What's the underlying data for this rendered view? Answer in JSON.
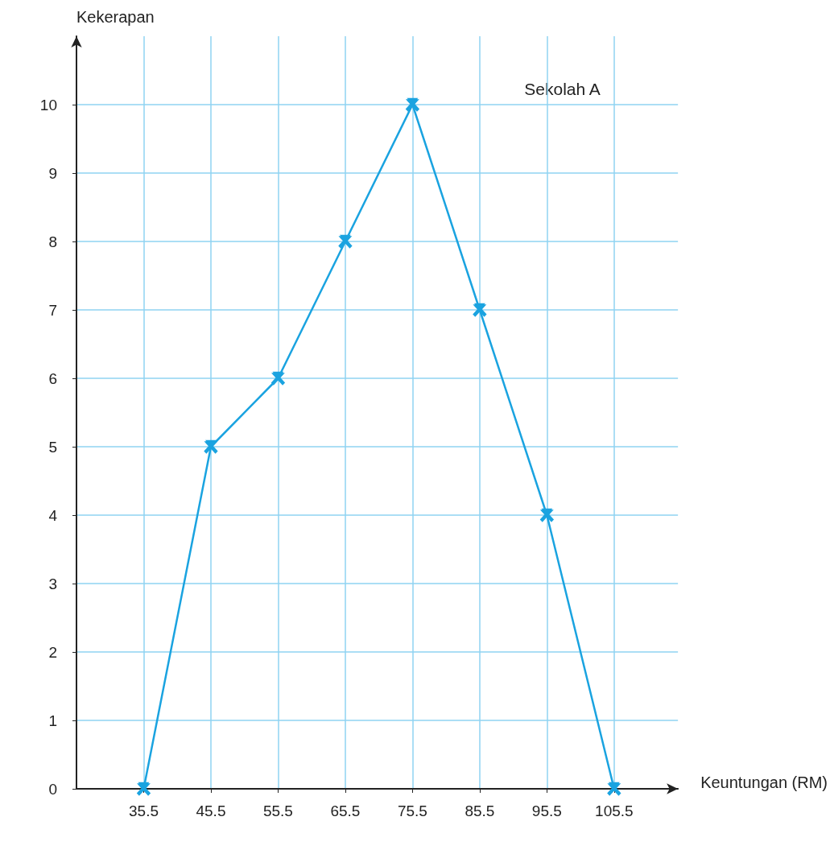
{
  "chart_data": {
    "type": "line",
    "xlabel": "Keuntungan (RM)",
    "ylabel": "Kekerapan",
    "annotations": [
      "Sekolah A"
    ],
    "x": [
      35.5,
      45.5,
      55.5,
      65.5,
      75.5,
      85.5,
      95.5,
      105.5
    ],
    "series": [
      {
        "color": "#1aa3e0",
        "values": [
          0,
          5,
          6,
          8,
          10,
          7,
          4,
          0
        ]
      }
    ],
    "xlim": [
      25.5,
      115
    ],
    "xticks": [
      35.5,
      45.5,
      55.5,
      65.5,
      75.5,
      85.5,
      95.5,
      105.5
    ],
    "ylim": [
      0,
      11
    ],
    "yticks": [
      0,
      1,
      2,
      3,
      4,
      5,
      6,
      7,
      8,
      9,
      10
    ],
    "grid": true,
    "marker": "cross",
    "line_style": "solid"
  }
}
